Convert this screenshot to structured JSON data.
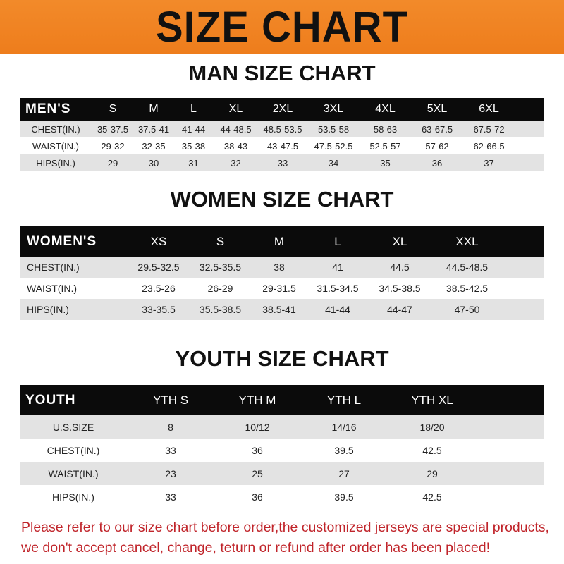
{
  "banner": {
    "title": "SIZE CHART"
  },
  "men": {
    "title": "MAN SIZE CHART",
    "header": [
      "MEN'S",
      "S",
      "M",
      "L",
      "XL",
      "2XL",
      "3XL",
      "4XL",
      "5XL",
      "6XL"
    ],
    "rows": [
      [
        "CHEST(IN.)",
        "35-37.5",
        "37.5-41",
        "41-44",
        "44-48.5",
        "48.5-53.5",
        "53.5-58",
        "58-63",
        "63-67.5",
        "67.5-72"
      ],
      [
        "WAIST(IN.)",
        "29-32",
        "32-35",
        "35-38",
        "38-43",
        "43-47.5",
        "47.5-52.5",
        "52.5-57",
        "57-62",
        "62-66.5"
      ],
      [
        "HIPS(IN.)",
        "29",
        "30",
        "31",
        "32",
        "33",
        "34",
        "35",
        "36",
        "37"
      ]
    ]
  },
  "women": {
    "title": "WOMEN SIZE CHART",
    "header": [
      "WOMEN'S",
      "XS",
      "S",
      "M",
      "L",
      "XL",
      "XXL"
    ],
    "rows": [
      [
        "CHEST(IN.)",
        "29.5-32.5",
        "32.5-35.5",
        "38",
        "41",
        "44.5",
        "44.5-48.5"
      ],
      [
        "WAIST(IN.)",
        "23.5-26",
        "26-29",
        "29-31.5",
        "31.5-34.5",
        "34.5-38.5",
        "38.5-42.5"
      ],
      [
        "HIPS(IN.)",
        "33-35.5",
        "35.5-38.5",
        "38.5-41",
        "41-44",
        "44-47",
        "47-50"
      ]
    ]
  },
  "youth": {
    "title": "YOUTH SIZE CHART",
    "header": [
      "YOUTH",
      "YTH S",
      "YTH M",
      "YTH L",
      "YTH XL"
    ],
    "rows": [
      [
        "U.S.SIZE",
        "8",
        "10/12",
        "14/16",
        "18/20"
      ],
      [
        "CHEST(IN.)",
        "33",
        "36",
        "39.5",
        "42.5"
      ],
      [
        "WAIST(IN.)",
        "23",
        "25",
        "27",
        "29"
      ],
      [
        "HIPS(IN.)",
        "33",
        "36",
        "39.5",
        "42.5"
      ]
    ]
  },
  "note": {
    "line1": "Please refer to our size chart before order,the customized jerseys are special products,",
    "line2": "we don't accept cancel, change, teturn or refund after order has been placed!"
  },
  "colors": {
    "banner": "#ef8222",
    "header_row": "#0b0b0b",
    "alt_row": "#e3e3e3",
    "note": "#c0242a"
  }
}
